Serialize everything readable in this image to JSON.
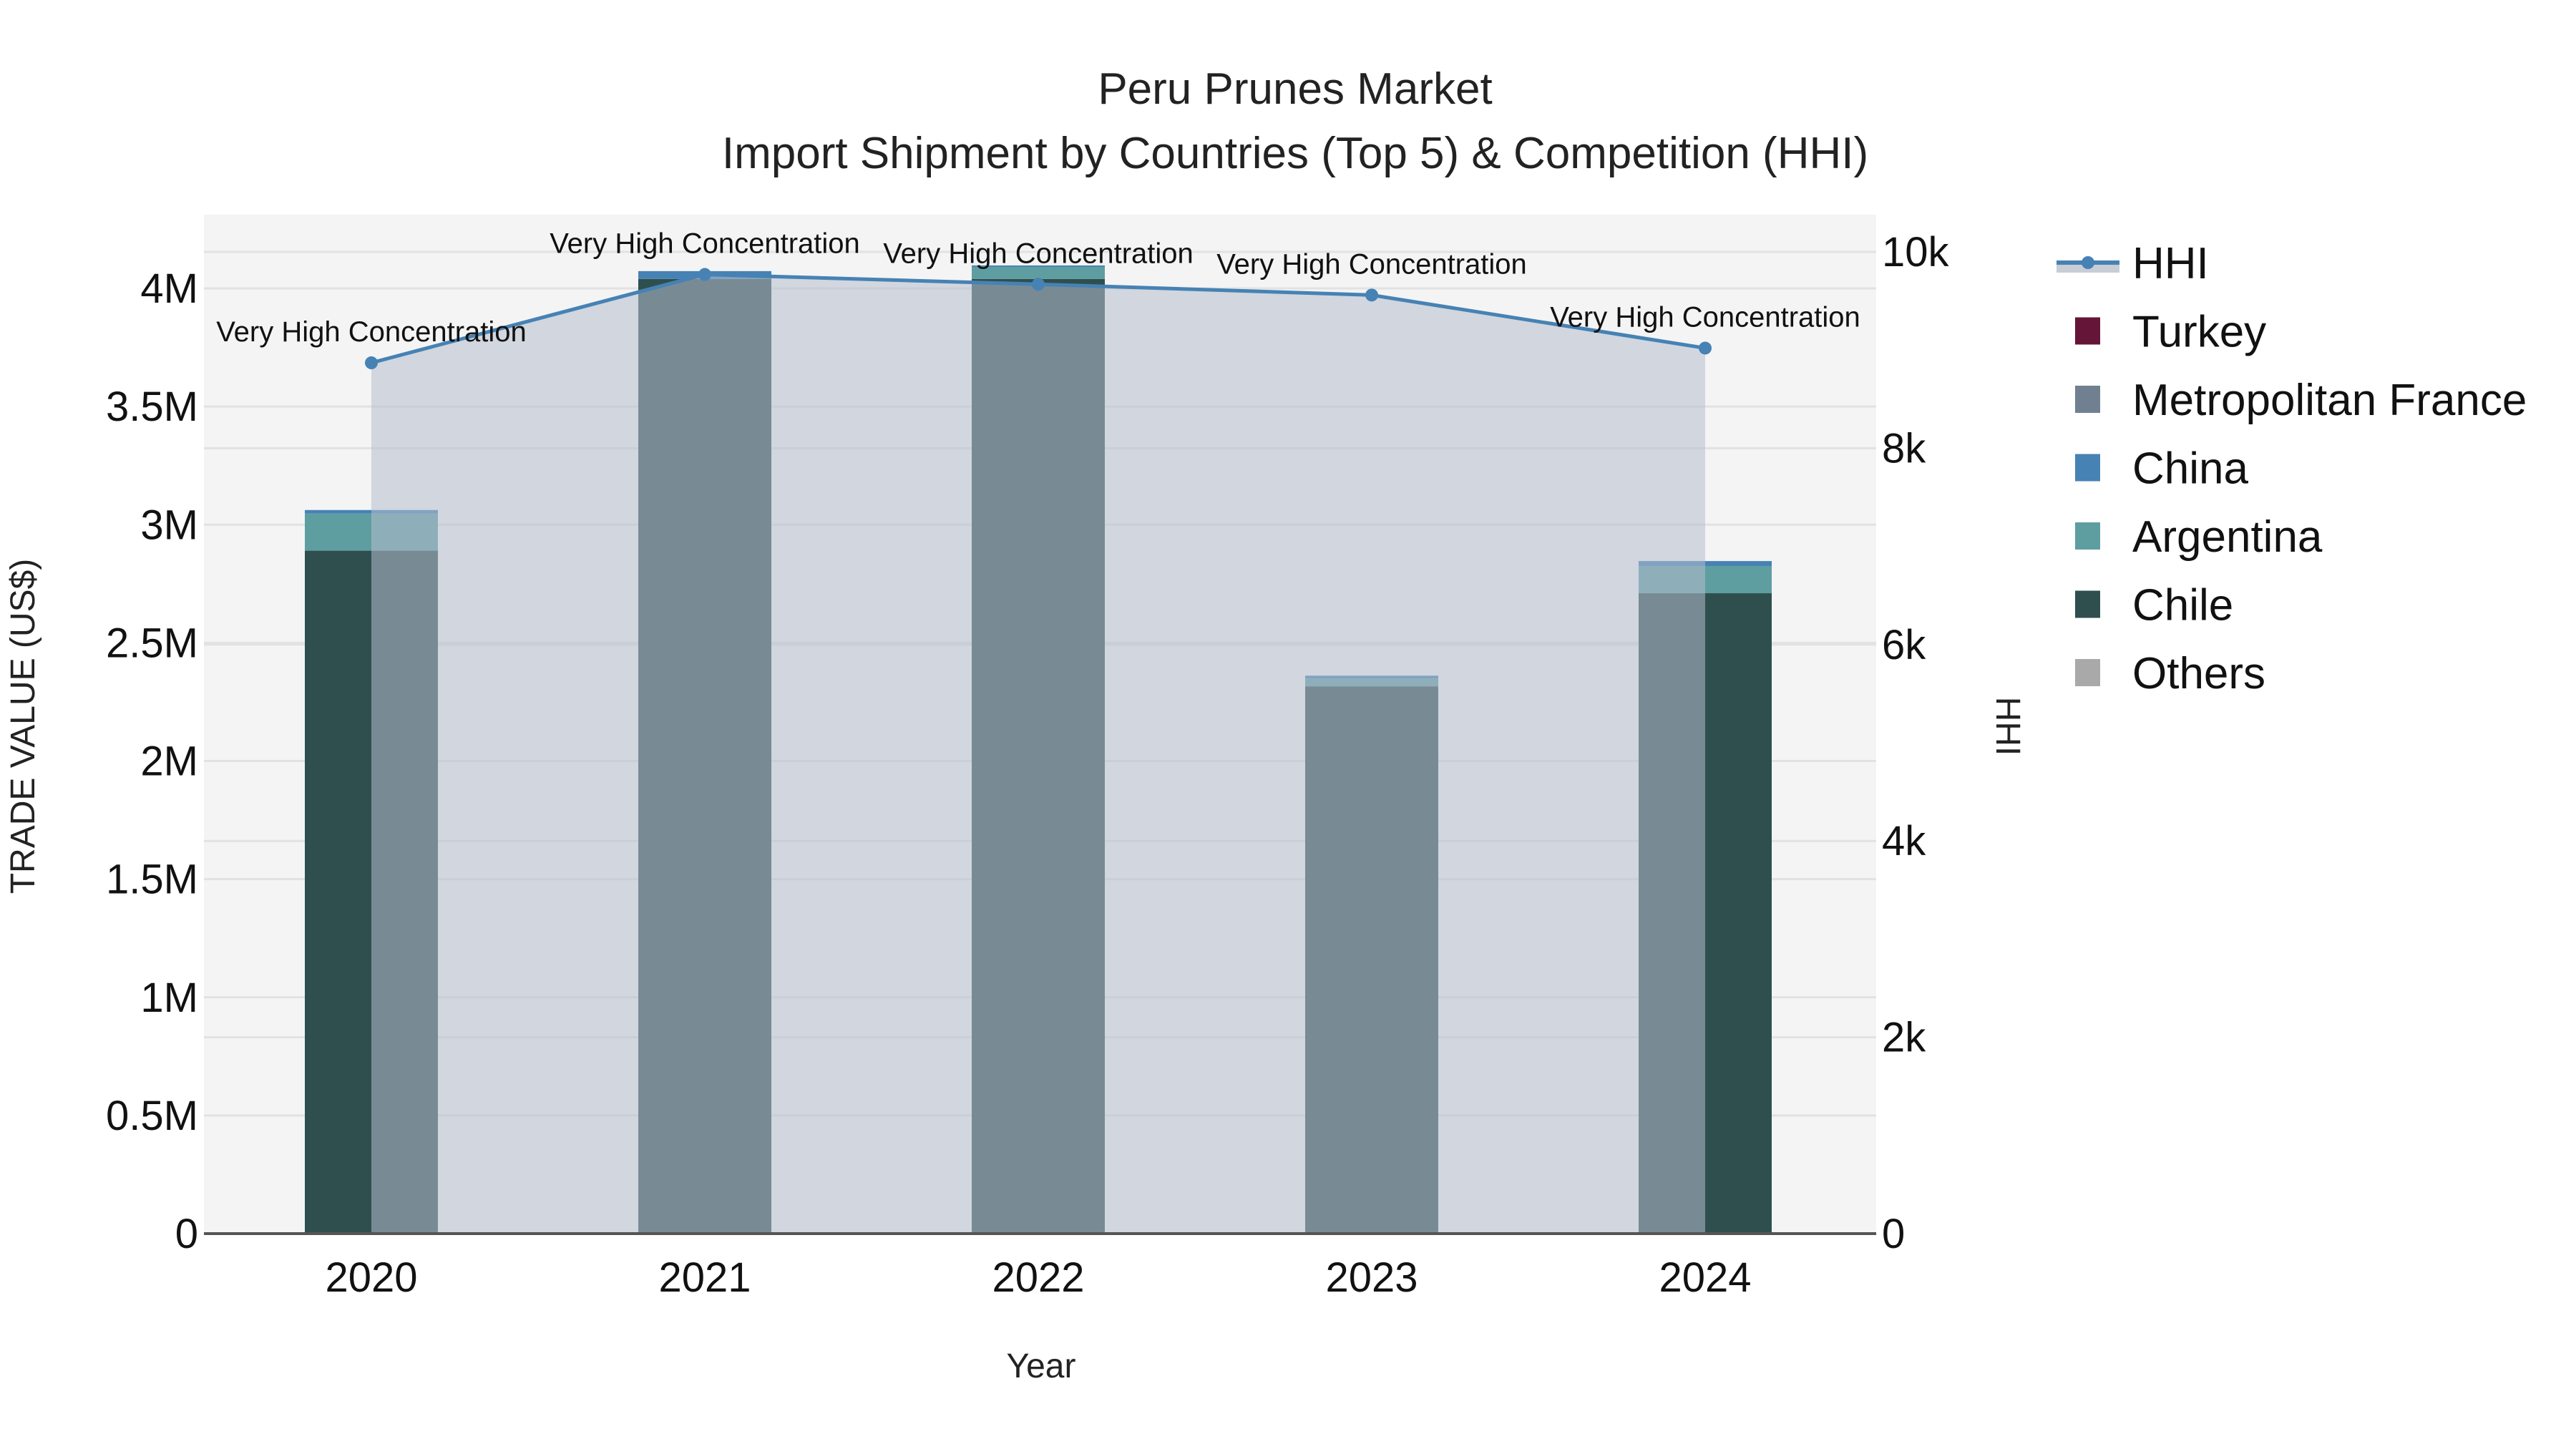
{
  "title": {
    "line1": "Peru Prunes Market",
    "line2": "Import Shipment by Countries (Top 5) & Competition (HHI)"
  },
  "axes": {
    "x_title": "Year",
    "y_left_title": "TRADE VALUE (US$)",
    "y_right_title": "HHI",
    "y_left_ticks": [
      "0",
      "0.5M",
      "1M",
      "1.5M",
      "2M",
      "2.5M",
      "3M",
      "3.5M",
      "4M"
    ],
    "y_right_ticks": [
      "0",
      "2k",
      "4k",
      "6k",
      "8k",
      "10k"
    ]
  },
  "legend": {
    "items": [
      {
        "label": "HHI",
        "kind": "line-area",
        "color": "#4682B4",
        "fill": "#C8CDD6"
      },
      {
        "label": "Turkey",
        "kind": "square",
        "color": "#641538"
      },
      {
        "label": "Metropolitan France",
        "kind": "square",
        "color": "#708090"
      },
      {
        "label": "China",
        "kind": "square",
        "color": "#4682B4"
      },
      {
        "label": "Argentina",
        "kind": "square",
        "color": "#5F9EA0"
      },
      {
        "label": "Chile",
        "kind": "square",
        "color": "#2F4F4F"
      },
      {
        "label": "Others",
        "kind": "square",
        "color": "#A9A9A9"
      }
    ]
  },
  "colors": {
    "plot_bg": "#F4F4F4",
    "grid": "#E2E2E2",
    "hhi_line": "#4682B4",
    "hhi_fill": "#B4BECD",
    "axis_line": "#555555"
  },
  "chart_data": {
    "type": "bar",
    "title": "Peru Prunes Market — Import Shipment by Countries (Top 5) & Competition (HHI)",
    "xlabel": "Year",
    "ylabel": "TRADE VALUE (US$)",
    "y2label": "HHI",
    "categories": [
      "2020",
      "2021",
      "2022",
      "2023",
      "2024"
    ],
    "ylim": [
      0,
      4300000
    ],
    "y2lim": [
      0,
      10380
    ],
    "barmode": "stack",
    "grid": true,
    "legend_position": "right",
    "series": [
      {
        "name": "Chile",
        "type": "bar",
        "color": "#2F4F4F",
        "values": [
          2890000,
          4040000,
          4040000,
          2316000,
          2710000
        ]
      },
      {
        "name": "Argentina",
        "type": "bar",
        "color": "#5F9EA0",
        "values": [
          157000,
          0,
          51000,
          33000,
          115000
        ]
      },
      {
        "name": "China",
        "type": "bar",
        "color": "#4682B4",
        "values": [
          15000,
          33000,
          6000,
          12000,
          21000
        ]
      },
      {
        "name": "Metropolitan France",
        "type": "bar",
        "color": "#708090",
        "values": [
          0,
          0,
          0,
          0,
          0
        ]
      },
      {
        "name": "Turkey",
        "type": "bar",
        "color": "#641538",
        "values": [
          0,
          0,
          0,
          0,
          0
        ]
      },
      {
        "name": "Others",
        "type": "bar",
        "color": "#A9A9A9",
        "values": [
          0,
          0,
          0,
          0,
          0
        ]
      },
      {
        "name": "HHI",
        "type": "line-area",
        "axis": "y2",
        "color": "#4682B4",
        "values": [
          8870,
          9770,
          9670,
          9560,
          9020
        ]
      }
    ],
    "annotations": [
      {
        "x": "2020",
        "text": "Very High Concentration"
      },
      {
        "x": "2021",
        "text": "Very High Concentration"
      },
      {
        "x": "2022",
        "text": "Very High Concentration"
      },
      {
        "x": "2023",
        "text": "Very High Concentration"
      },
      {
        "x": "2024",
        "text": "Very High Concentration"
      }
    ]
  }
}
